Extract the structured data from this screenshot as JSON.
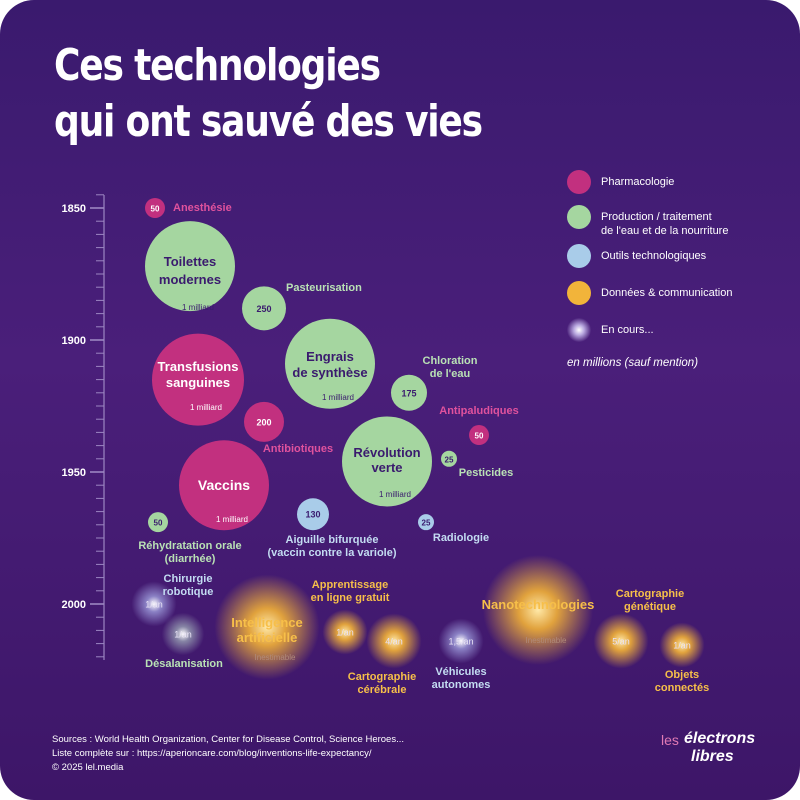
{
  "title": {
    "line1": "Ces technologies",
    "line2": "qui ont sauvé des vies"
  },
  "legend": {
    "items": [
      {
        "label": "Pharmacologie",
        "color": "#c2307f",
        "category": "pharma"
      },
      {
        "label": "Production / traitement\nde l'eau et de la nourriture",
        "color": "#a5d6a0",
        "category": "food"
      },
      {
        "label": "Outils technologiques",
        "color": "#a9cce9",
        "category": "tools"
      },
      {
        "label": "Données & communication",
        "color": "#f2b43a",
        "category": "data"
      },
      {
        "label": "En cours...",
        "color": "#ffffff",
        "category": "ongoing"
      }
    ],
    "note": "en millions (sauf mention)"
  },
  "chart_data": {
    "type": "scatter",
    "title": "Ces technologies qui ont sauvé des vies",
    "ylabel": "",
    "ylim": [
      1850,
      2020
    ],
    "yticks": [
      1850,
      1900,
      1950,
      2000
    ],
    "unit": "en millions (sauf mention)",
    "points": [
      {
        "name": "Anesthésie",
        "category": "pharma",
        "year": 1850,
        "value": 50,
        "value_label": "50"
      },
      {
        "name": "Toilettes modernes",
        "category": "food",
        "year": 1872,
        "value": 1000,
        "value_label": "1 milliard"
      },
      {
        "name": "Pasteurisation",
        "category": "food",
        "year": 1888,
        "value": 250,
        "value_label": "250"
      },
      {
        "name": "Transfusions sanguines",
        "category": "pharma",
        "year": 1915,
        "value": 1000,
        "value_label": "1 milliard"
      },
      {
        "name": "Engrais de synthèse",
        "category": "food",
        "year": 1909,
        "value": 1000,
        "value_label": "1 milliard"
      },
      {
        "name": "Chloration de l'eau",
        "category": "food",
        "year": 1920,
        "value": 175,
        "value_label": "175"
      },
      {
        "name": "Antibiotiques",
        "category": "pharma",
        "year": 1931,
        "value": 200,
        "value_label": "200"
      },
      {
        "name": "Antipaludiques",
        "category": "pharma",
        "year": 1936,
        "value": 50,
        "value_label": "50"
      },
      {
        "name": "Révolution verte",
        "category": "food",
        "year": 1946,
        "value": 1000,
        "value_label": "1 milliard"
      },
      {
        "name": "Pesticides",
        "category": "food",
        "year": 1945,
        "value": 25,
        "value_label": "25"
      },
      {
        "name": "Vaccins",
        "category": "pharma",
        "year": 1955,
        "value": 1000,
        "value_label": "1 milliard"
      },
      {
        "name": "Aiguille bifurquée (vaccin contre la variole)",
        "category": "tools",
        "year": 1966,
        "value": 130,
        "value_label": "130"
      },
      {
        "name": "Radiologie",
        "category": "tools",
        "year": 1969,
        "value": 25,
        "value_label": "25"
      },
      {
        "name": "Réhydratation orale (diarrhée)",
        "category": "food",
        "year": 1969,
        "value": 50,
        "value_label": "50"
      },
      {
        "name": "Chirurgie robotique",
        "category": "tools",
        "year": 2000,
        "value": null,
        "value_label": "1/an",
        "ongoing": true
      },
      {
        "name": "Désalanisation",
        "category": "food",
        "year": 2011,
        "value": null,
        "value_label": "1/an",
        "ongoing": true
      },
      {
        "name": "Intelligence artificielle",
        "category": "data",
        "year": 2009,
        "value": null,
        "value_label": "Inestimable",
        "ongoing": true
      },
      {
        "name": "Apprentissage en ligne gratuit",
        "category": "data",
        "year": 2010,
        "value": null,
        "value_label": "1/an",
        "ongoing": true
      },
      {
        "name": "Cartographie cérébrale",
        "category": "data",
        "year": 2014,
        "value": null,
        "value_label": "4/an",
        "ongoing": true
      },
      {
        "name": "Véhicules autonomes",
        "category": "tools",
        "year": 2014,
        "value": null,
        "value_label": "1,5/an",
        "ongoing": true
      },
      {
        "name": "Nanotechnologies",
        "category": "data",
        "year": 2003,
        "value": null,
        "value_label": "Inestimable",
        "ongoing": true
      },
      {
        "name": "Cartographie génétique",
        "category": "data",
        "year": 2013,
        "value": null,
        "value_label": "5/an",
        "ongoing": true
      },
      {
        "name": "Objets connectés",
        "category": "data",
        "year": 2016,
        "value": null,
        "value_label": "1/an",
        "ongoing": true
      }
    ]
  },
  "sources": {
    "line1": "Sources : World Health Organization, Center for Disease Control, Science Heroes...",
    "line2": "Liste complète sur : https://aperioncare.com/blog/inventions-life-expectancy/",
    "line3": "© 2025 lel.media"
  },
  "brand": {
    "w1": "les",
    "w2": "électrons",
    "w3": "libres"
  },
  "colors": {
    "pharma": "#c2307f",
    "food": "#a5d6a0",
    "tools": "#a9cce9",
    "data": "#f2b43a",
    "pharma_text": "#e0529d",
    "food_text": "#b9e1b5",
    "tools_text": "#c3dcf2",
    "data_text": "#f7bf49",
    "dark_text": "#3a1a6e"
  }
}
